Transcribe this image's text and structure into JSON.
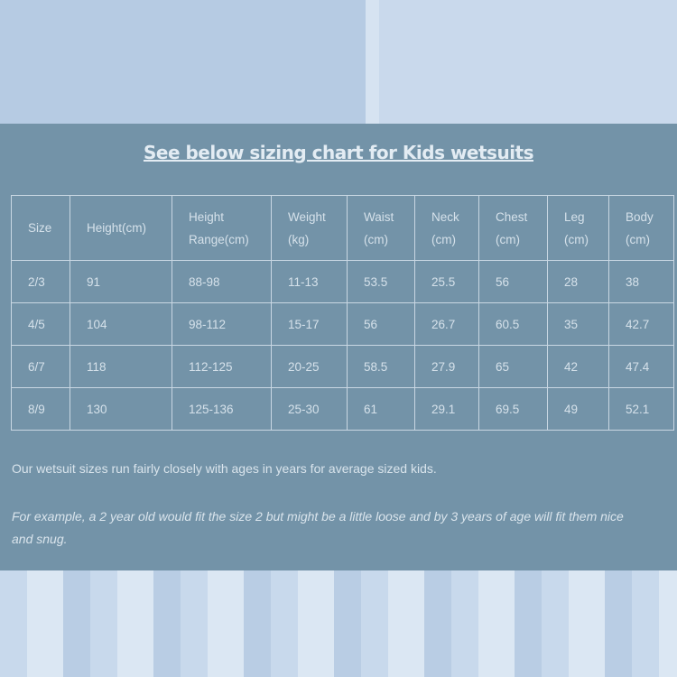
{
  "title": "See below sizing chart for Kids wetsuits",
  "table": {
    "headers": [
      [
        "Size"
      ],
      [
        "Height(cm)"
      ],
      [
        "Height",
        "Range(cm)"
      ],
      [
        "Weight",
        "(kg)"
      ],
      [
        "Waist",
        "(cm)"
      ],
      [
        "Neck",
        "(cm)"
      ],
      [
        "Chest",
        "(cm)"
      ],
      [
        "Leg",
        "(cm)"
      ],
      [
        "Body",
        "(cm)"
      ]
    ],
    "rows": [
      [
        "2/3",
        "91",
        "88-98",
        "11-13",
        "53.5",
        "25.5",
        "56",
        "28",
        "38"
      ],
      [
        "4/5",
        "104",
        "98-112",
        "15-17",
        "56",
        "26.7",
        "60.5",
        "35",
        "42.7"
      ],
      [
        "6/7",
        "118",
        "112-125",
        "20-25",
        "58.5",
        "27.9",
        "65",
        "42",
        "47.4"
      ],
      [
        "8/9",
        "130",
        "125-136",
        "25-30",
        "61",
        "29.1",
        "69.5",
        "49",
        "52.1"
      ]
    ]
  },
  "note1": "Our wetsuit sizes run fairly closely with ages in years for average sized kids.",
  "note2": "For example, a 2 year old would fit the size 2 but might be a little loose and by 3 years of age will fit them nice and snug.",
  "colors": {
    "panel": "#7393a8",
    "text": "#dde7ef",
    "border": "#c9d7e3"
  }
}
